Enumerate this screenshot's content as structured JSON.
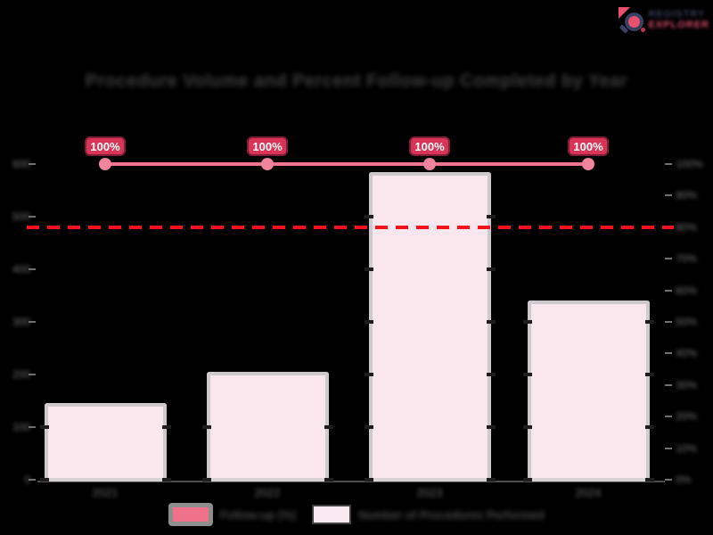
{
  "logo": {
    "brand_line1": "REGISTRY",
    "brand_line2": "EXPLORER"
  },
  "title": "Procedure Volume and Percent Follow-up Completed by Year",
  "chart_data": {
    "type": "bar",
    "title": "Procedure Volume and Percent Follow-up Completed by Year",
    "categories": [
      "2021",
      "2022",
      "2023",
      "2024"
    ],
    "series": [
      {
        "name": "Number of Procedures Performed",
        "type": "bar",
        "yaxis": "left",
        "color": "#fae7ee",
        "values": [
          145,
          205,
          585,
          340
        ]
      },
      {
        "name": "Follow-up (%)",
        "type": "line",
        "yaxis": "right",
        "color": "#f0758e",
        "values": [
          100,
          100,
          100,
          100
        ],
        "point_labels": [
          "100%",
          "100%",
          "100%",
          "100%"
        ]
      }
    ],
    "reference_line": {
      "yaxis": "right",
      "value": 80,
      "style": "dashed",
      "color": "#fb0f1a"
    },
    "left_axis": {
      "range": [
        0,
        600
      ],
      "ticks": [
        "600",
        "500",
        "400",
        "300",
        "200",
        "100",
        "0"
      ]
    },
    "right_axis": {
      "range": [
        0,
        100
      ],
      "ticks": [
        "100%",
        "90%",
        "80%",
        "70%",
        "60%",
        "50%",
        "40%",
        "30%",
        "20%",
        "10%",
        "0%"
      ]
    },
    "grid": false,
    "legend_position": "bottom"
  },
  "legend": {
    "items": [
      {
        "label": "Follow-up (%)",
        "swatch_color": "#f0718a"
      },
      {
        "label": "Number of Procedures Performed",
        "swatch_color": "#fae9f0"
      }
    ]
  },
  "colors": {
    "background": "#000000",
    "bar_fill": "#fae7ee",
    "bar_border": "#cdc9cc",
    "line_pink": "#f0758e",
    "badge_fill": "#d93355",
    "badge_border": "#7c1e37",
    "badge_text": "#ffffff",
    "reference_red": "#fb0f1a",
    "axis_text": "#7a7a7a",
    "title_text": "#414141",
    "logo_navy": "#3a4060",
    "logo_pink": "#e8506e"
  }
}
